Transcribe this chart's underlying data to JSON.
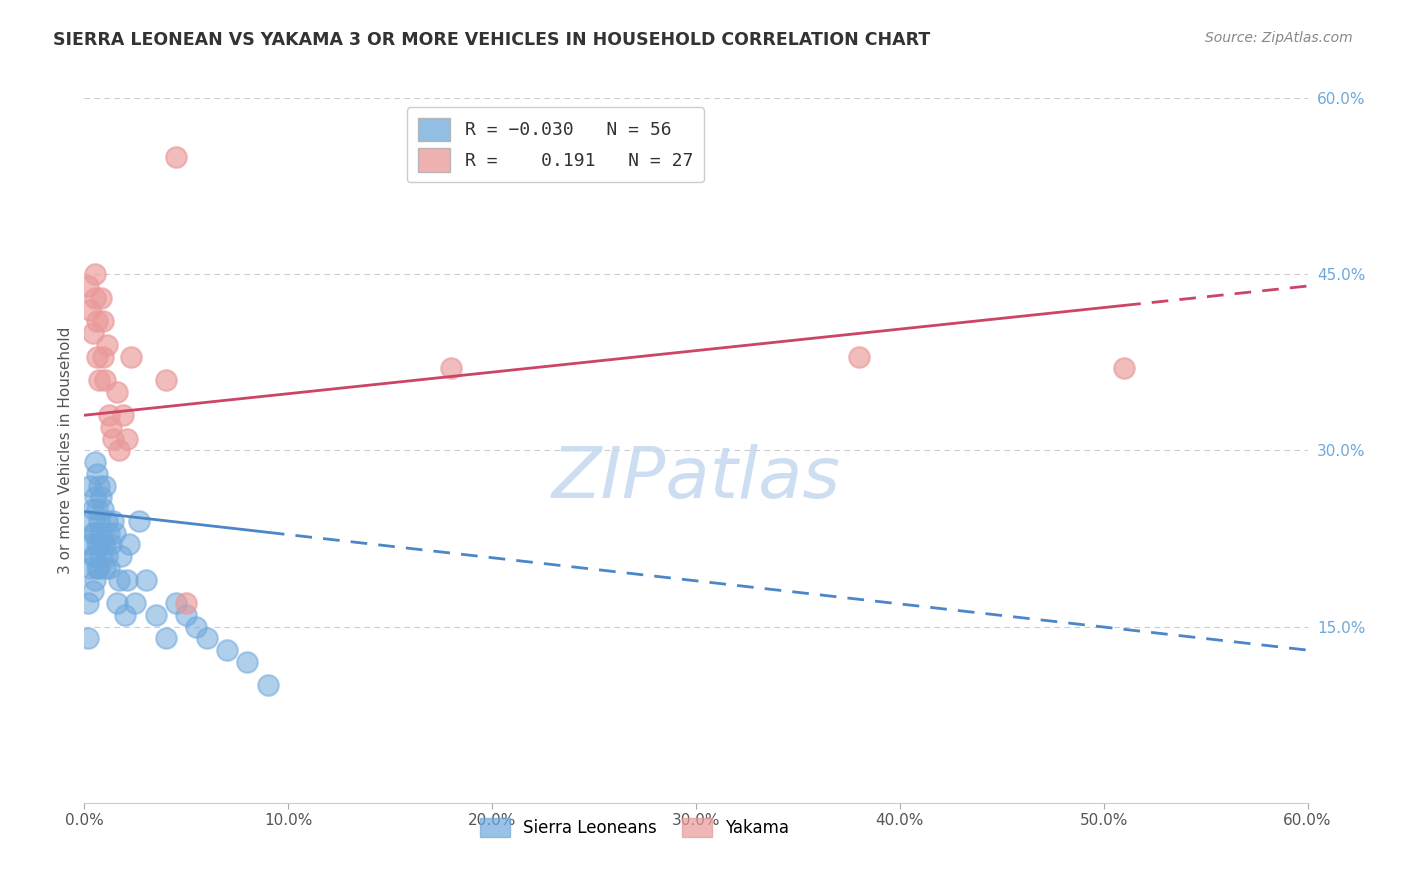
{
  "title": "SIERRA LEONEAN VS YAKAMA 3 OR MORE VEHICLES IN HOUSEHOLD CORRELATION CHART",
  "source": "Source: ZipAtlas.com",
  "ylabel": "3 or more Vehicles in Household",
  "xlim": [
    0.0,
    0.6
  ],
  "ylim": [
    0.0,
    0.6
  ],
  "xtick_positions": [
    0.0,
    0.1,
    0.2,
    0.3,
    0.4,
    0.5,
    0.6
  ],
  "xtick_labels": [
    "0.0%",
    "10.0%",
    "20.0%",
    "30.0%",
    "40.0%",
    "50.0%",
    "60.0%"
  ],
  "ytick_vals_right": [
    0.15,
    0.3,
    0.45,
    0.6
  ],
  "ytick_labels_right": [
    "15.0%",
    "30.0%",
    "45.0%",
    "60.0%"
  ],
  "blue_color": "#6fa8dc",
  "pink_color": "#ea9999",
  "trend_blue_color": "#4a86c8",
  "trend_pink_color": "#cc4466",
  "watermark_color": "#c5d9f0",
  "sierra_x": [
    0.002,
    0.002,
    0.003,
    0.003,
    0.003,
    0.003,
    0.004,
    0.004,
    0.004,
    0.004,
    0.005,
    0.005,
    0.005,
    0.005,
    0.005,
    0.006,
    0.006,
    0.006,
    0.006,
    0.007,
    0.007,
    0.007,
    0.007,
    0.008,
    0.008,
    0.008,
    0.009,
    0.009,
    0.01,
    0.01,
    0.01,
    0.011,
    0.011,
    0.012,
    0.012,
    0.013,
    0.014,
    0.015,
    0.016,
    0.017,
    0.018,
    0.02,
    0.021,
    0.022,
    0.025,
    0.027,
    0.03,
    0.035,
    0.04,
    0.045,
    0.05,
    0.055,
    0.06,
    0.07,
    0.08,
    0.09
  ],
  "sierra_y": [
    0.14,
    0.17,
    0.2,
    0.22,
    0.24,
    0.27,
    0.18,
    0.21,
    0.23,
    0.25,
    0.19,
    0.21,
    0.23,
    0.26,
    0.29,
    0.2,
    0.22,
    0.25,
    0.28,
    0.2,
    0.22,
    0.24,
    0.27,
    0.21,
    0.23,
    0.26,
    0.22,
    0.25,
    0.2,
    0.22,
    0.27,
    0.21,
    0.24,
    0.2,
    0.23,
    0.22,
    0.24,
    0.23,
    0.17,
    0.19,
    0.21,
    0.16,
    0.19,
    0.22,
    0.17,
    0.24,
    0.19,
    0.16,
    0.14,
    0.17,
    0.16,
    0.15,
    0.14,
    0.13,
    0.12,
    0.1
  ],
  "yakama_x": [
    0.002,
    0.003,
    0.004,
    0.005,
    0.005,
    0.006,
    0.006,
    0.007,
    0.008,
    0.009,
    0.009,
    0.01,
    0.011,
    0.012,
    0.013,
    0.014,
    0.016,
    0.017,
    0.019,
    0.021,
    0.023,
    0.04,
    0.045,
    0.05,
    0.18,
    0.38,
    0.51
  ],
  "yakama_y": [
    0.44,
    0.42,
    0.4,
    0.43,
    0.45,
    0.38,
    0.41,
    0.36,
    0.43,
    0.38,
    0.41,
    0.36,
    0.39,
    0.33,
    0.32,
    0.31,
    0.35,
    0.3,
    0.33,
    0.31,
    0.38,
    0.36,
    0.55,
    0.17,
    0.37,
    0.38,
    0.37
  ],
  "blue_trend_x_start": 0.0,
  "blue_trend_x_solid_end": 0.09,
  "blue_trend_x_end": 0.6,
  "blue_trend_y_start": 0.248,
  "blue_trend_y_end": 0.13,
  "pink_trend_x_start": 0.0,
  "pink_trend_x_solid_end": 0.51,
  "pink_trend_x_end": 0.6,
  "pink_trend_y_start": 0.33,
  "pink_trend_y_end": 0.44
}
